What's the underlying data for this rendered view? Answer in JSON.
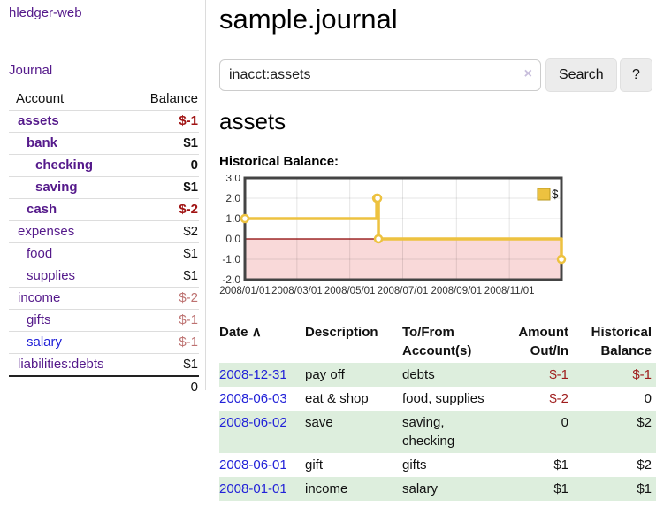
{
  "app": {
    "brand": "hledger-web",
    "nav_journal": "Journal"
  },
  "sidebar": {
    "headers": {
      "account": "Account",
      "balance": "Balance"
    },
    "accounts": [
      {
        "name": "assets",
        "depth": 1,
        "balance": "$-1",
        "in_account": true
      },
      {
        "name": "bank",
        "depth": 2,
        "balance": "$1",
        "in_account": true
      },
      {
        "name": "checking",
        "depth": 3,
        "balance": "0",
        "in_account": true
      },
      {
        "name": "saving",
        "depth": 3,
        "balance": "$1",
        "in_account": true
      },
      {
        "name": "cash",
        "depth": 2,
        "balance": "$-2",
        "in_account": true
      },
      {
        "name": "expenses",
        "depth": 1,
        "balance": "$2"
      },
      {
        "name": "food",
        "depth": 2,
        "balance": "$1"
      },
      {
        "name": "supplies",
        "depth": 2,
        "balance": "$1"
      },
      {
        "name": "income",
        "depth": 1,
        "balance": "$-2"
      },
      {
        "name": "gifts",
        "depth": 2,
        "balance": "$-1"
      },
      {
        "name": "salary",
        "depth": 2,
        "balance": "$-1",
        "link_blue": true
      },
      {
        "name": "liabilities:debts",
        "depth": 1,
        "balance": "$1"
      }
    ],
    "total": "0"
  },
  "header": {
    "title": "sample.journal"
  },
  "search": {
    "value": "inacct:assets",
    "clear_icon": "×",
    "button_label": "Search",
    "help_label": "?"
  },
  "account_page": {
    "heading": "assets",
    "chart_label": "Historical Balance:"
  },
  "chart_data": {
    "type": "line",
    "step": true,
    "title": "Historical Balance",
    "series": [
      {
        "name": "$",
        "color": "#edc240",
        "points": [
          [
            "2008-01-01",
            1
          ],
          [
            "2008-06-01",
            2
          ],
          [
            "2008-06-02",
            2
          ],
          [
            "2008-06-03",
            0
          ],
          [
            "2008-12-31",
            -1
          ]
        ]
      }
    ],
    "xlim": [
      "2008-01-01",
      "2008-12-31"
    ],
    "ylim": [
      -2,
      3
    ],
    "yticks": [
      "3.0",
      "2.0",
      "1.0",
      "0.0",
      "-1.0",
      "-2.0"
    ],
    "xticks": [
      "2008/01/01",
      "2008/03/01",
      "2008/05/01",
      "2008/07/01",
      "2008/09/01",
      "2008/11/01"
    ],
    "legend": {
      "label": "$",
      "position": "top-right"
    },
    "grid": true,
    "negative_region_fill": "#f9d9d9",
    "zero_line_color": "#8b0000"
  },
  "register": {
    "headers": {
      "date": "Date",
      "sort_icon": "∧",
      "description": "Description",
      "accounts": "To/From Account(s)",
      "amount": "Amount Out/In",
      "balance": "Historical Balance"
    },
    "rows": [
      {
        "date": "2008-12-31",
        "description": "pay off",
        "accounts": "debts",
        "amount": "$-1",
        "balance": "$-1"
      },
      {
        "date": "2008-06-03",
        "description": "eat & shop",
        "accounts": "food, supplies",
        "amount": "$-2",
        "balance": "0"
      },
      {
        "date": "2008-06-02",
        "description": "save",
        "accounts": "saving, checking",
        "amount": "0",
        "balance": "$2"
      },
      {
        "date": "2008-06-01",
        "description": "gift",
        "accounts": "gifts",
        "amount": "$1",
        "balance": "$2"
      },
      {
        "date": "2008-01-01",
        "description": "income",
        "accounts": "salary",
        "amount": "$1",
        "balance": "$1"
      }
    ]
  },
  "colors": {
    "link_purple": "#551a8b",
    "link_blue": "#2222d8",
    "negative_strong": "#a01313",
    "negative_dim": "#bd7170",
    "table_negative": "#9e1b1b",
    "row_stripe_green": "#ddeedd",
    "series_gold": "#edc240",
    "chart_negative_fill": "#f9d9d9",
    "zero_line_red": "#8b0000"
  }
}
